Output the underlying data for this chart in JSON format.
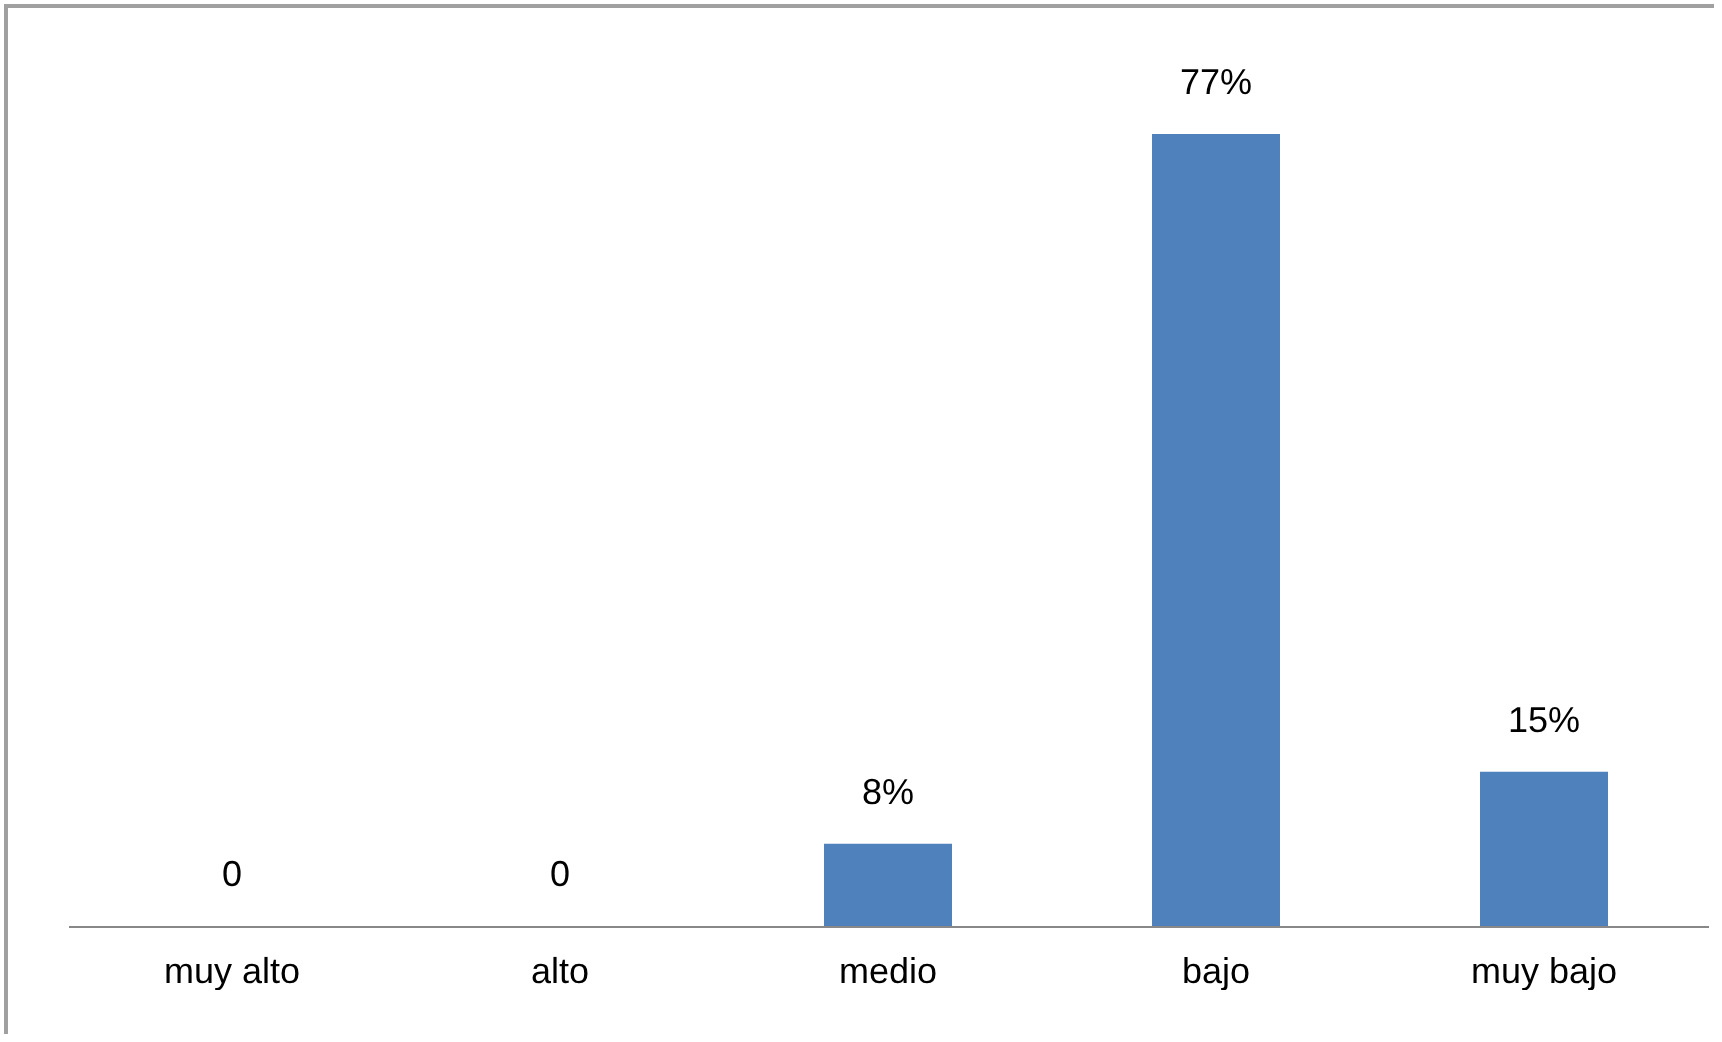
{
  "chart_data": {
    "type": "bar",
    "categories": [
      "muy alto",
      "alto",
      "medio",
      "bajo",
      "muy bajo"
    ],
    "values": [
      0,
      0,
      8,
      77,
      15
    ],
    "value_labels": [
      "0",
      "0",
      "8%",
      "77%",
      "15%"
    ],
    "color": "#4f81bd"
  }
}
